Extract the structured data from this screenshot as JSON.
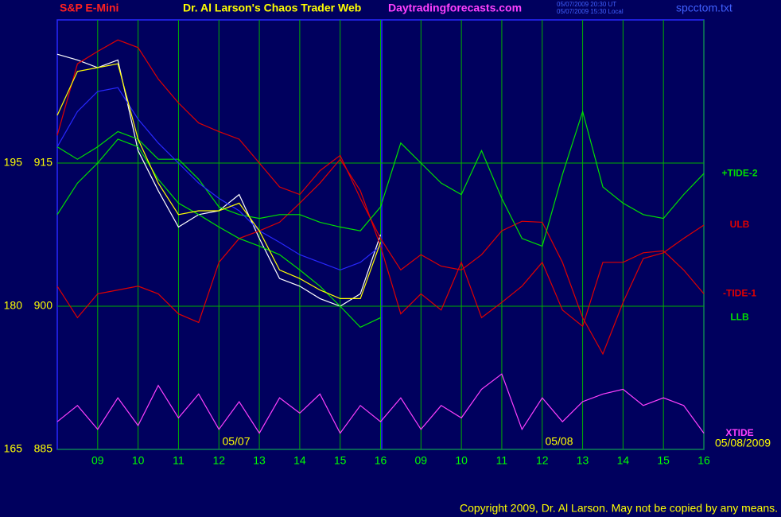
{
  "chart_data": {
    "type": "line",
    "symbol": "S&P E-Mini",
    "title": "Dr. Al Larson's Chaos Trader Web",
    "site": "Daytradingforecasts.com",
    "timestamps": [
      "05/07/2009 20:30 UT",
      "05/07/2009 15:30 Local"
    ],
    "file": "spcctom.txt",
    "copyright": "Copyright 2009, Dr. Al Larson. May not be copied by any means.",
    "dates": [
      "05/07",
      "05/08",
      "05/08/2009"
    ],
    "x": [
      0,
      0.5,
      1,
      1.5,
      2,
      2.5,
      3,
      3.5,
      4,
      4.5,
      5,
      5.5,
      6,
      6.5,
      7,
      7.5,
      8,
      8.5,
      9,
      9.5,
      10,
      10.5,
      11,
      11.5,
      12,
      12.5,
      13,
      13.5,
      14,
      14.5,
      15,
      15.5,
      16
    ],
    "xlim": [
      0,
      16
    ],
    "xticks": [
      {
        "value": 1,
        "label": "09"
      },
      {
        "value": 2,
        "label": "10"
      },
      {
        "value": 3,
        "label": "11"
      },
      {
        "value": 4,
        "label": "12"
      },
      {
        "value": 5,
        "label": "13"
      },
      {
        "value": 6,
        "label": "14"
      },
      {
        "value": 7,
        "label": "15"
      },
      {
        "value": 8,
        "label": "16"
      },
      {
        "value": 9,
        "label": "09"
      },
      {
        "value": 10,
        "label": "10"
      },
      {
        "value": 11,
        "label": "11"
      },
      {
        "value": 12,
        "label": "12"
      },
      {
        "value": 13,
        "label": "13"
      },
      {
        "value": 14,
        "label": "14"
      },
      {
        "value": 15,
        "label": "15"
      },
      {
        "value": 16,
        "label": "16"
      }
    ],
    "ylim": [
      885,
      930
    ],
    "yticks": [
      885,
      900,
      915
    ],
    "y2lim": [
      165,
      210
    ],
    "y2ticks": [
      165,
      180,
      195
    ],
    "grid": true,
    "series": [
      {
        "color": "#ffffff",
        "values": [
          926.4,
          925.8,
          925,
          925.8,
          916.3,
          912.1,
          908.3,
          909.6,
          910,
          911.7,
          907.1,
          902.9,
          902.1,
          900.8,
          900,
          901.3,
          907.5,
          null,
          null,
          null,
          null,
          null,
          null,
          null,
          null,
          null,
          null,
          null,
          null,
          null,
          null,
          null,
          null
        ]
      },
      {
        "name": "ULB",
        "color": "#e00000",
        "values": [
          917.9,
          925.4,
          926.7,
          927.9,
          927.1,
          923.8,
          921.3,
          919.2,
          918.3,
          917.5,
          915,
          912.5,
          911.7,
          914.2,
          915.8,
          911.3,
          907.1,
          903.8,
          905.4,
          904.2,
          903.8,
          905.4,
          907.9,
          908.9,
          908.8,
          904.6,
          898.8,
          895,
          900.4,
          905,
          905.6,
          907.1,
          908.5
        ]
      },
      {
        "name": "-TIDE-1",
        "color": "#e00000",
        "values": [
          902.1,
          898.8,
          901.3,
          901.7,
          902.1,
          901.3,
          899.2,
          898.3,
          904.6,
          907.1,
          907.9,
          908.8,
          910.8,
          912.9,
          915.4,
          912.1,
          906.3,
          899.2,
          901.3,
          899.6,
          904.6,
          898.8,
          900.4,
          902.1,
          904.6,
          899.6,
          897.9,
          904.6,
          904.6,
          905.6,
          905.8,
          903.8,
          901.3
        ]
      },
      {
        "name": "+TIDE-2",
        "color": "#00e000",
        "values": [
          916.7,
          915.4,
          916.7,
          918.3,
          917.5,
          915.4,
          915.4,
          913.3,
          910.4,
          909.6,
          909.2,
          909.6,
          909.6,
          908.8,
          908.3,
          907.9,
          910.4,
          917.1,
          915,
          912.9,
          911.7,
          916.3,
          911.3,
          907.1,
          906.3,
          913.8,
          920.4,
          912.5,
          910.8,
          909.6,
          909.2,
          911.7,
          913.9
        ]
      },
      {
        "name": "LLB",
        "color": "#00e000",
        "values": [
          909.6,
          912.9,
          915,
          917.5,
          916.7,
          913.3,
          910.8,
          909.6,
          908.3,
          907.1,
          906.3,
          905.4,
          903.8,
          902.1,
          900,
          897.8,
          898.8,
          null,
          null,
          null,
          null,
          null,
          null,
          null,
          null,
          null,
          null,
          null,
          null,
          null,
          null,
          null,
          null
        ]
      },
      {
        "color": "#2828ff",
        "values": [
          916.7,
          920.4,
          922.5,
          922.9,
          919.6,
          917.1,
          915,
          912.9,
          911.3,
          910,
          907.9,
          906.7,
          905.4,
          904.6,
          903.8,
          904.6,
          906.3,
          null,
          null,
          null,
          null,
          null,
          null,
          null,
          null,
          null,
          null,
          null,
          null,
          null,
          null,
          null,
          null
        ]
      },
      {
        "color": "#ffff00",
        "values": [
          920,
          924.6,
          925,
          925.4,
          917.5,
          912.9,
          909.6,
          910,
          910,
          910.8,
          907.9,
          903.8,
          902.9,
          901.7,
          900.8,
          900.8,
          906.7,
          null,
          null,
          null,
          null,
          null,
          null,
          null,
          null,
          null,
          null,
          null,
          null,
          null,
          null,
          null,
          null
        ]
      },
      {
        "name": "XTIDE",
        "color": "#ff40ff",
        "values": [
          887.9,
          889.6,
          887.1,
          890.4,
          887.5,
          891.7,
          888.3,
          890.8,
          887.1,
          890,
          886.7,
          890.4,
          888.8,
          890.8,
          886.7,
          889.6,
          887.9,
          890.4,
          887.1,
          889.6,
          888.3,
          891.3,
          892.9,
          887.1,
          890.4,
          887.9,
          890,
          890.8,
          891.3,
          889.6,
          890.4,
          889.6,
          886.7
        ]
      }
    ]
  }
}
